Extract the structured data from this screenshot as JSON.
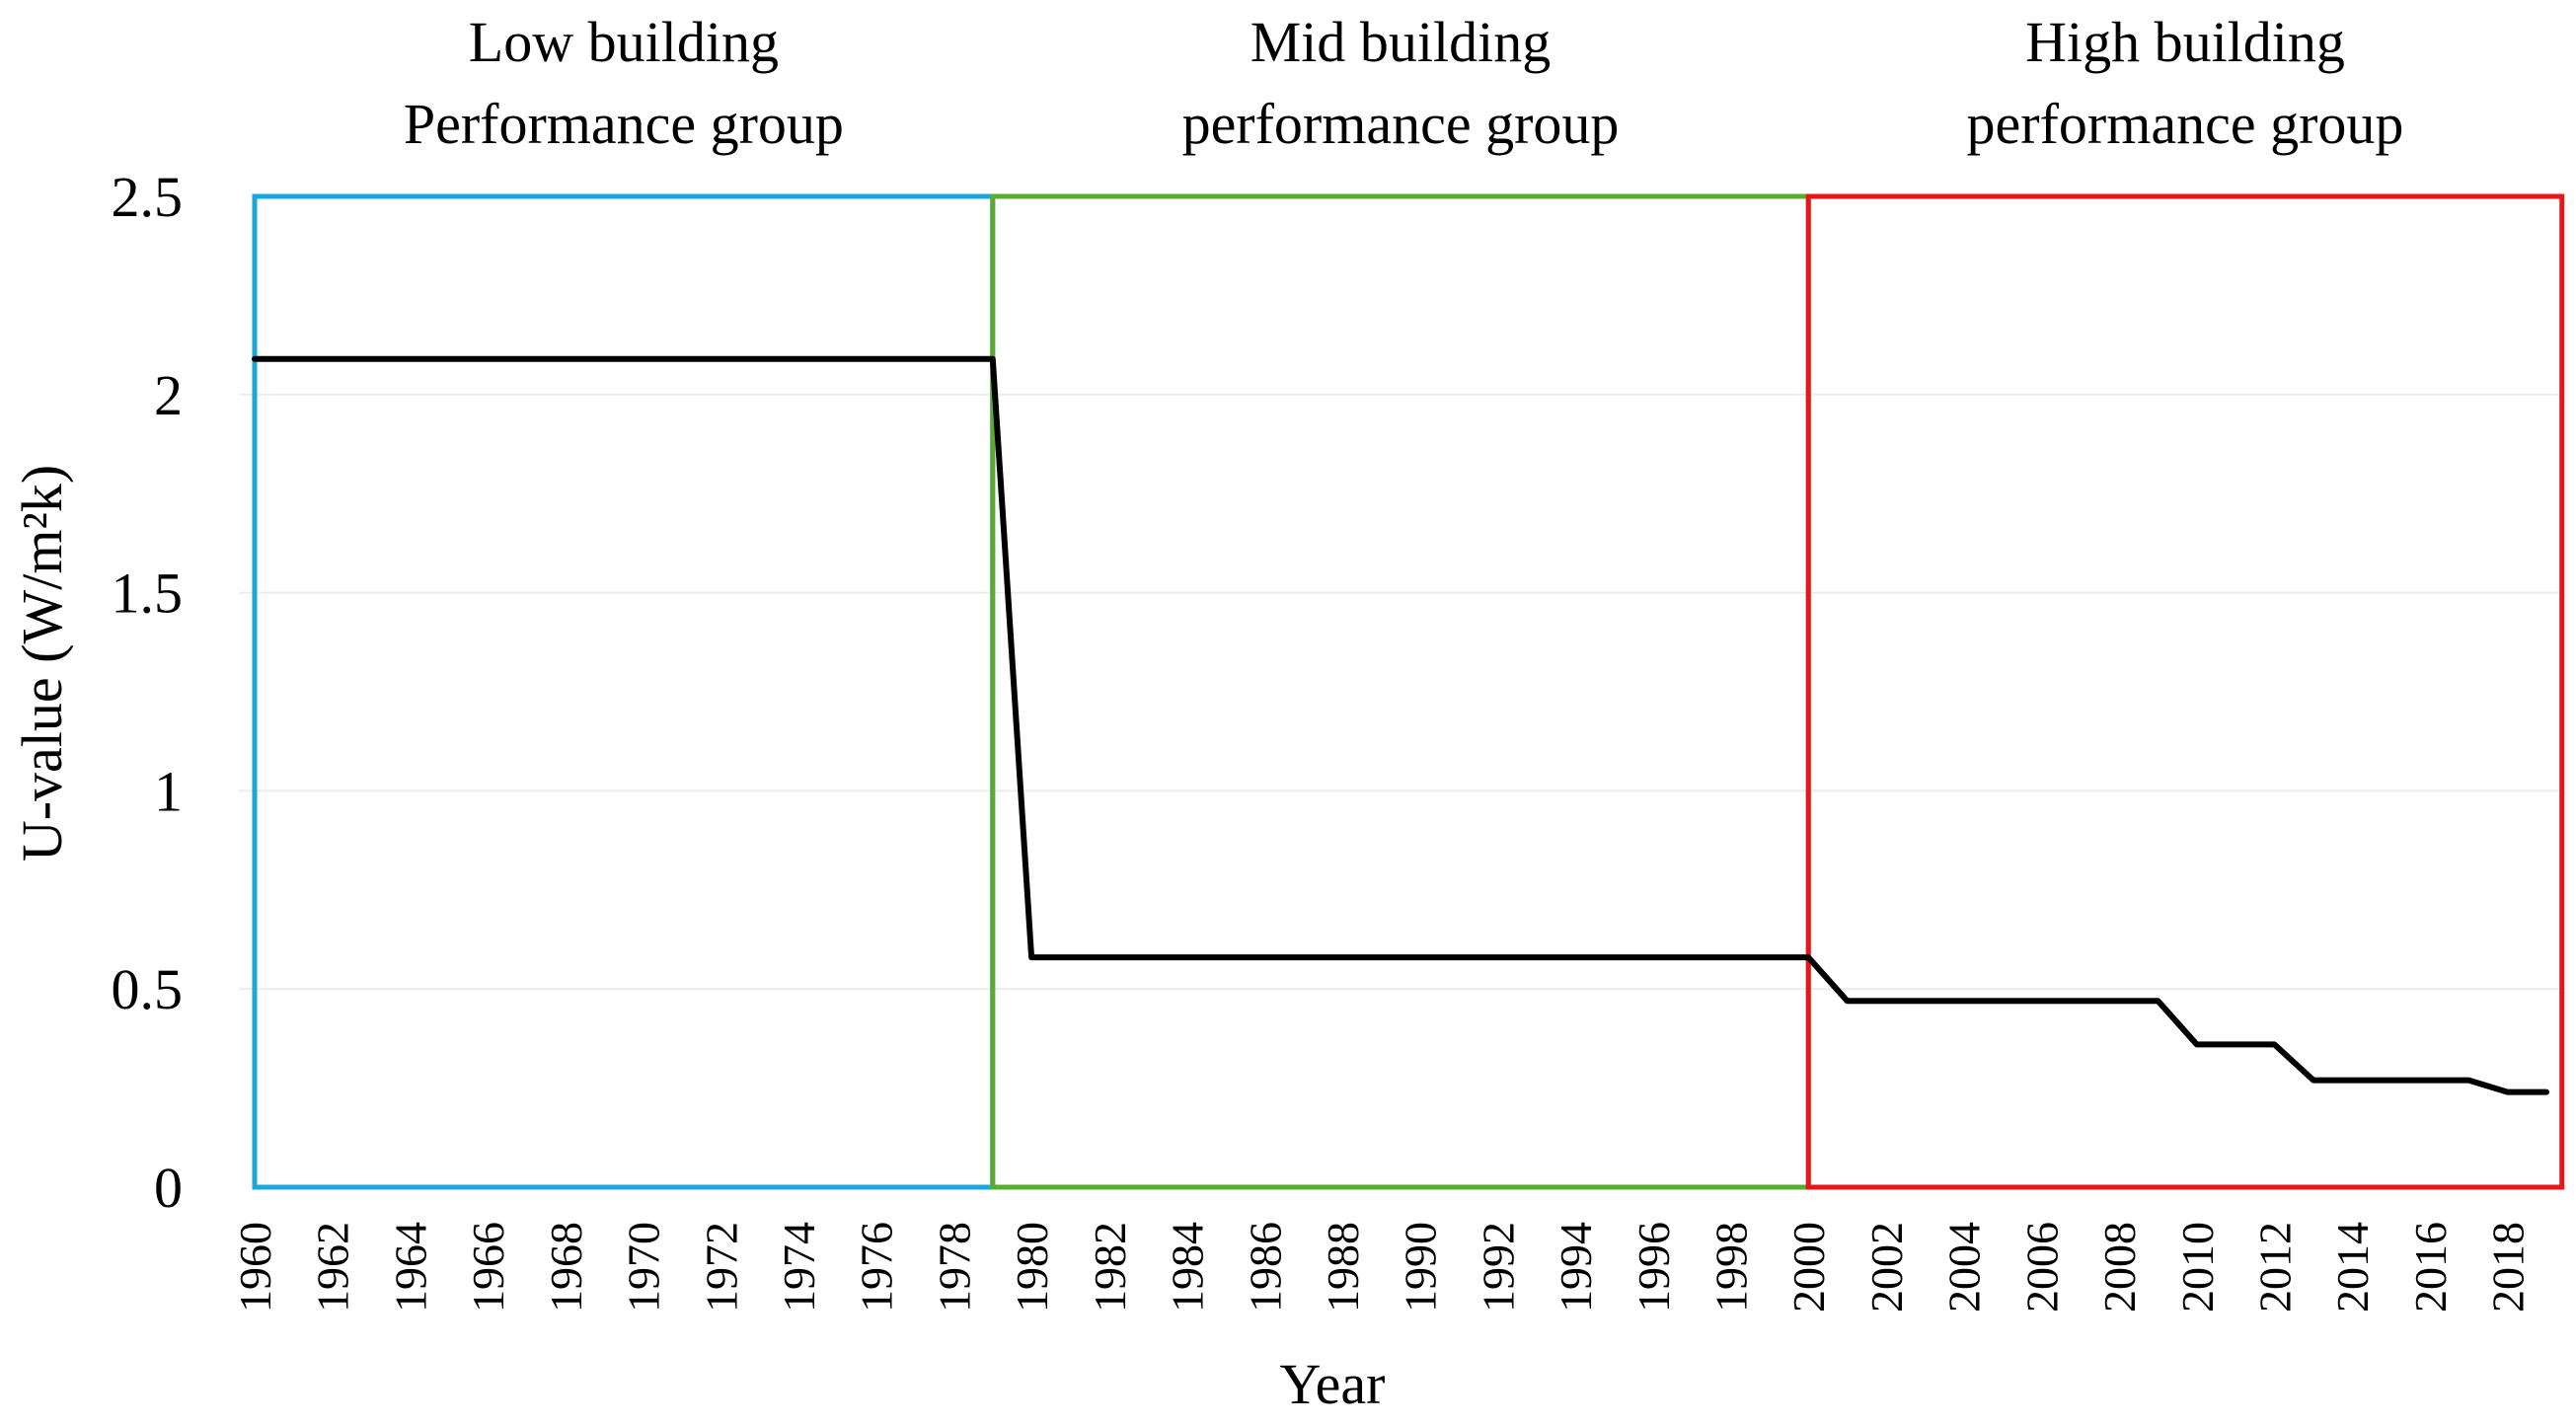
{
  "chart_data": {
    "type": "line",
    "title": "",
    "xlabel": "Year",
    "ylabel": "U-value (W/m²k)",
    "ylim": [
      0,
      2.5
    ],
    "yticks": [
      "0",
      "0.5",
      "1",
      "1.5",
      "2",
      "2.5"
    ],
    "xlim": [
      1960,
      2019
    ],
    "xticks": [
      "1960",
      "1962",
      "1964",
      "1966",
      "1968",
      "1970",
      "1972",
      "1974",
      "1976",
      "1978",
      "1980",
      "1982",
      "1984",
      "1986",
      "1988",
      "1990",
      "1992",
      "1994",
      "1996",
      "1998",
      "2000",
      "2002",
      "2004",
      "2006",
      "2008",
      "2010",
      "2012",
      "2014",
      "2016",
      "2018"
    ],
    "grid": true,
    "series": [
      {
        "name": "U-value",
        "color": "#000000",
        "x": [
          1960,
          1979,
          1980,
          2000,
          2001,
          2009,
          2010,
          2012,
          2013,
          2017,
          2018,
          2019
        ],
        "y": [
          2.09,
          2.09,
          0.58,
          0.58,
          0.47,
          0.47,
          0.36,
          0.36,
          0.27,
          0.27,
          0.24,
          0.24
        ]
      }
    ],
    "groups": [
      {
        "line1": "Low building",
        "line2": "Performance  group",
        "start": 1960,
        "end": 1979,
        "color": "#1ba7dc"
      },
      {
        "line1": "Mid building",
        "line2": "performance  group",
        "start": 1979,
        "end": 2000,
        "color": "#5aab32"
      },
      {
        "line1": "High building",
        "line2": "performance  group",
        "start": 2000,
        "end": 2019.4,
        "color": "#e8161b"
      }
    ]
  }
}
